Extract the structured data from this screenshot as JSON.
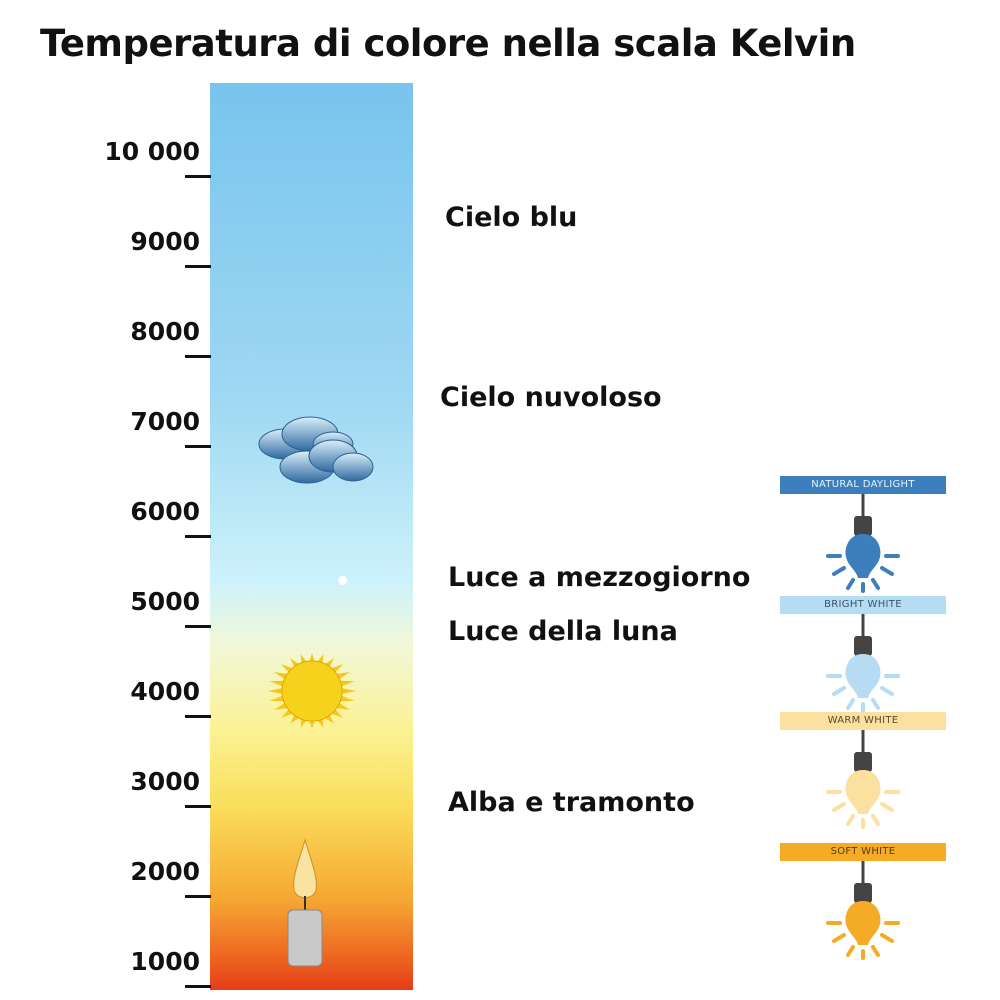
{
  "title": "Temperatura di colore nella scala Kelvin",
  "scale": {
    "ticks": [
      "10 000",
      "9000",
      "8000",
      "7000",
      "6000",
      "5000",
      "4000",
      "3000",
      "2000",
      "1000"
    ]
  },
  "descriptions": [
    {
      "label": "Cielo blu",
      "kelvin": 9500
    },
    {
      "label": "Cielo nuvoloso",
      "kelvin": 7500
    },
    {
      "label": "Luce a mezzogiorno",
      "kelvin": 5500
    },
    {
      "label": "Luce della luna",
      "kelvin": 4900
    },
    {
      "label": "Alba e tramonto",
      "kelvin": 3000
    }
  ],
  "icons": [
    "cloud-icon",
    "sun-icon",
    "candle-icon"
  ],
  "bulbs": [
    {
      "label": "NATURAL DAYLIGHT",
      "color": "#3d7fbd",
      "text_color": "#e8f1fa"
    },
    {
      "label": "BRIGHT WHITE",
      "color": "#b5dcf3",
      "text_color": "#3b5366"
    },
    {
      "label": "WARM WHITE",
      "color": "#fbe0a0",
      "text_color": "#5a4a2a"
    },
    {
      "label": "SOFT WHITE",
      "color": "#f5ab26",
      "text_color": "#5a3a10"
    }
  ]
}
